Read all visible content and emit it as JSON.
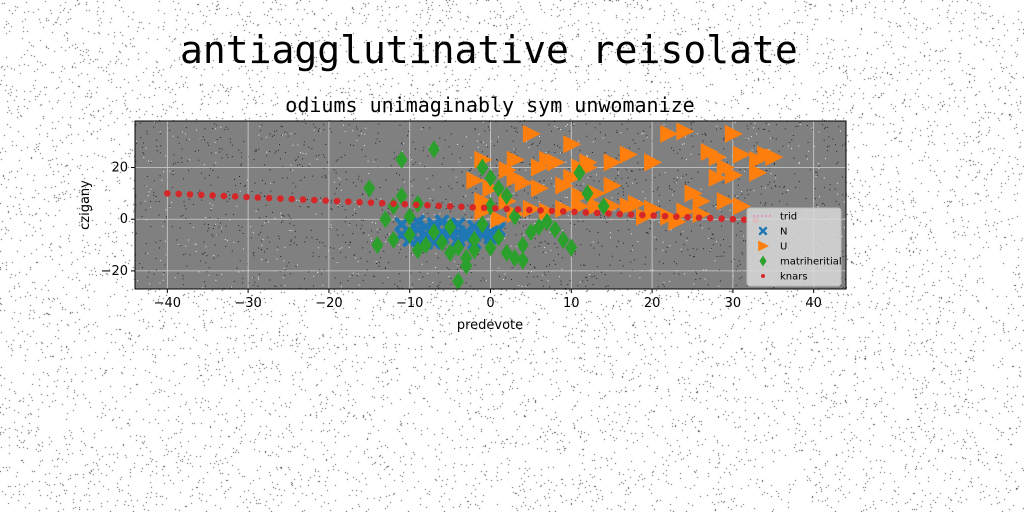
{
  "suptitle": "antiagglutinative reisolate",
  "chart_data": {
    "type": "scatter",
    "title": "odiums unimaginably sym unwomanize",
    "xlabel": "predevote",
    "ylabel": "czigany",
    "xlim": [
      -44,
      44
    ],
    "ylim": [
      -27,
      38
    ],
    "xticks": [
      -40,
      -30,
      -20,
      -10,
      0,
      10,
      20,
      30,
      40
    ],
    "yticks": [
      -20,
      0,
      20
    ],
    "grid": true,
    "background_color": "#808080",
    "legend_position": "lower-right",
    "series": [
      {
        "name": "trid",
        "marker": "dotted-line",
        "color": "#e377c2",
        "points": []
      },
      {
        "name": "N",
        "marker": "x",
        "color": "#1f77b4",
        "points": [
          [
            -11,
            -2
          ],
          [
            -10,
            -5
          ],
          [
            -10,
            -8
          ],
          [
            -9,
            -4
          ],
          [
            -9,
            -1
          ],
          [
            -8,
            -6
          ],
          [
            -8,
            -3
          ],
          [
            -7,
            -9
          ],
          [
            -7,
            -2
          ],
          [
            -6,
            -5
          ],
          [
            -6,
            -7
          ],
          [
            -5,
            -3
          ],
          [
            -5,
            -6
          ],
          [
            -4,
            -8
          ],
          [
            -4,
            -2
          ],
          [
            -3,
            -5
          ],
          [
            -3,
            -7
          ],
          [
            -2,
            -3
          ],
          [
            -2,
            -9
          ],
          [
            -1,
            -4
          ],
          [
            -1,
            -6
          ],
          [
            0,
            -5
          ],
          [
            0,
            -7
          ],
          [
            -11,
            -6
          ],
          [
            -9,
            -8
          ],
          [
            -6,
            -1
          ],
          [
            -4,
            -5
          ],
          [
            -2,
            -6
          ],
          [
            1,
            -4
          ],
          [
            -8,
            -9
          ]
        ]
      },
      {
        "name": "U",
        "marker": "triangle-right",
        "color": "#ff7f0e",
        "points": [
          [
            5,
            33
          ],
          [
            10,
            29
          ],
          [
            2,
            19
          ],
          [
            7,
            23
          ],
          [
            -1,
            23
          ],
          [
            3,
            23
          ],
          [
            6,
            20
          ],
          [
            8,
            22
          ],
          [
            10,
            16
          ],
          [
            11,
            20
          ],
          [
            12,
            22
          ],
          [
            15,
            22
          ],
          [
            17,
            25
          ],
          [
            20,
            22
          ],
          [
            22,
            33
          ],
          [
            24,
            34
          ],
          [
            30,
            33
          ],
          [
            27,
            26
          ],
          [
            28,
            24
          ],
          [
            29,
            20
          ],
          [
            31,
            25
          ],
          [
            33,
            23
          ],
          [
            34,
            25
          ],
          [
            35,
            24
          ],
          [
            33,
            18
          ],
          [
            30,
            17
          ],
          [
            28,
            16
          ],
          [
            25,
            10
          ],
          [
            26,
            7
          ],
          [
            29,
            7
          ],
          [
            31,
            5
          ],
          [
            24,
            3
          ],
          [
            22,
            1
          ],
          [
            20,
            4
          ],
          [
            18,
            6
          ],
          [
            17,
            5
          ],
          [
            15,
            5
          ],
          [
            13,
            5
          ],
          [
            11,
            5
          ],
          [
            9,
            4
          ],
          [
            7,
            3
          ],
          [
            5,
            4
          ],
          [
            3,
            2
          ],
          [
            1,
            0
          ],
          [
            -1,
            3
          ],
          [
            -2,
            15
          ],
          [
            0,
            12
          ],
          [
            3,
            16
          ],
          [
            4,
            14
          ],
          [
            6,
            12
          ],
          [
            9,
            13
          ],
          [
            11,
            9
          ],
          [
            13,
            10
          ],
          [
            15,
            13
          ],
          [
            -1,
            7
          ],
          [
            2,
            7
          ],
          [
            23,
            -1
          ],
          [
            26,
            2
          ],
          [
            19,
            1
          ],
          [
            12,
            20
          ]
        ]
      },
      {
        "name": "matriheritial",
        "marker": "diamond",
        "color": "#2ca02c",
        "points": [
          [
            -11,
            23
          ],
          [
            -7,
            27
          ],
          [
            -15,
            12
          ],
          [
            -11,
            9
          ],
          [
            -9,
            6
          ],
          [
            -12,
            5
          ],
          [
            -10,
            1
          ],
          [
            -13,
            0
          ],
          [
            -14,
            -10
          ],
          [
            -12,
            -8
          ],
          [
            -10,
            -6
          ],
          [
            -9,
            -12
          ],
          [
            -8,
            -10
          ],
          [
            -6,
            -9
          ],
          [
            -5,
            -13
          ],
          [
            -4,
            -11
          ],
          [
            -3,
            -15
          ],
          [
            -2,
            -8
          ],
          [
            -4,
            -24
          ],
          [
            -3,
            -18
          ],
          [
            -2,
            -12
          ],
          [
            0,
            -11
          ],
          [
            1,
            -7
          ],
          [
            2,
            -13
          ],
          [
            3,
            -15
          ],
          [
            4,
            -16
          ],
          [
            5,
            -5
          ],
          [
            6,
            -3
          ],
          [
            7,
            -1
          ],
          [
            8,
            -4
          ],
          [
            9,
            -8
          ],
          [
            10,
            -11
          ],
          [
            11,
            18
          ],
          [
            12,
            10
          ],
          [
            14,
            5
          ],
          [
            -1,
            20
          ],
          [
            0,
            16
          ],
          [
            1,
            12
          ],
          [
            2,
            9
          ],
          [
            0,
            5
          ],
          [
            -1,
            -2
          ],
          [
            3,
            1
          ],
          [
            -7,
            -5
          ],
          [
            -5,
            -3
          ],
          [
            4,
            -10
          ]
        ]
      },
      {
        "name": "knars",
        "marker": "dot",
        "color": "#d62728",
        "points": [
          [
            -40,
            10
          ],
          [
            -38.6,
            9.8
          ],
          [
            -37.2,
            9.6
          ],
          [
            -35.8,
            9.4
          ],
          [
            -34.4,
            9.2
          ],
          [
            -33,
            9
          ],
          [
            -31.6,
            8.8
          ],
          [
            -30.2,
            8.6
          ],
          [
            -28.8,
            8.4
          ],
          [
            -27.4,
            8.2
          ],
          [
            -26,
            8
          ],
          [
            -24.6,
            7.8
          ],
          [
            -23.2,
            7.6
          ],
          [
            -21.8,
            7.4
          ],
          [
            -20.4,
            7.2
          ],
          [
            -19,
            7
          ],
          [
            -17.6,
            6.8
          ],
          [
            -16.2,
            6.6
          ],
          [
            -14.8,
            6.4
          ],
          [
            -13.4,
            6.2
          ],
          [
            -12,
            6
          ],
          [
            -10.6,
            5.8
          ],
          [
            -9.2,
            5.6
          ],
          [
            -7.8,
            5.4
          ],
          [
            -6.4,
            5.2
          ],
          [
            -5,
            5
          ],
          [
            -3.6,
            4.8
          ],
          [
            -2.2,
            4.6
          ],
          [
            -0.8,
            4.4
          ],
          [
            0.6,
            4.2
          ],
          [
            2,
            4
          ],
          [
            3.4,
            3.8
          ],
          [
            4.8,
            3.6
          ],
          [
            6.2,
            3.4
          ],
          [
            7.6,
            3.2
          ],
          [
            9,
            3
          ],
          [
            10.4,
            2.8
          ],
          [
            11.8,
            2.6
          ],
          [
            13.2,
            2.4
          ],
          [
            14.6,
            2.2
          ],
          [
            16,
            2
          ],
          [
            17.4,
            1.8
          ],
          [
            18.8,
            1.6
          ],
          [
            20.2,
            1.4
          ],
          [
            21.6,
            1.2
          ],
          [
            23,
            1
          ],
          [
            24.4,
            0.8
          ],
          [
            25.8,
            0.6
          ],
          [
            27.2,
            0.4
          ],
          [
            28.6,
            0.2
          ],
          [
            30,
            0
          ],
          [
            31.4,
            -0.2
          ],
          [
            32.8,
            -0.4
          ]
        ]
      }
    ]
  }
}
